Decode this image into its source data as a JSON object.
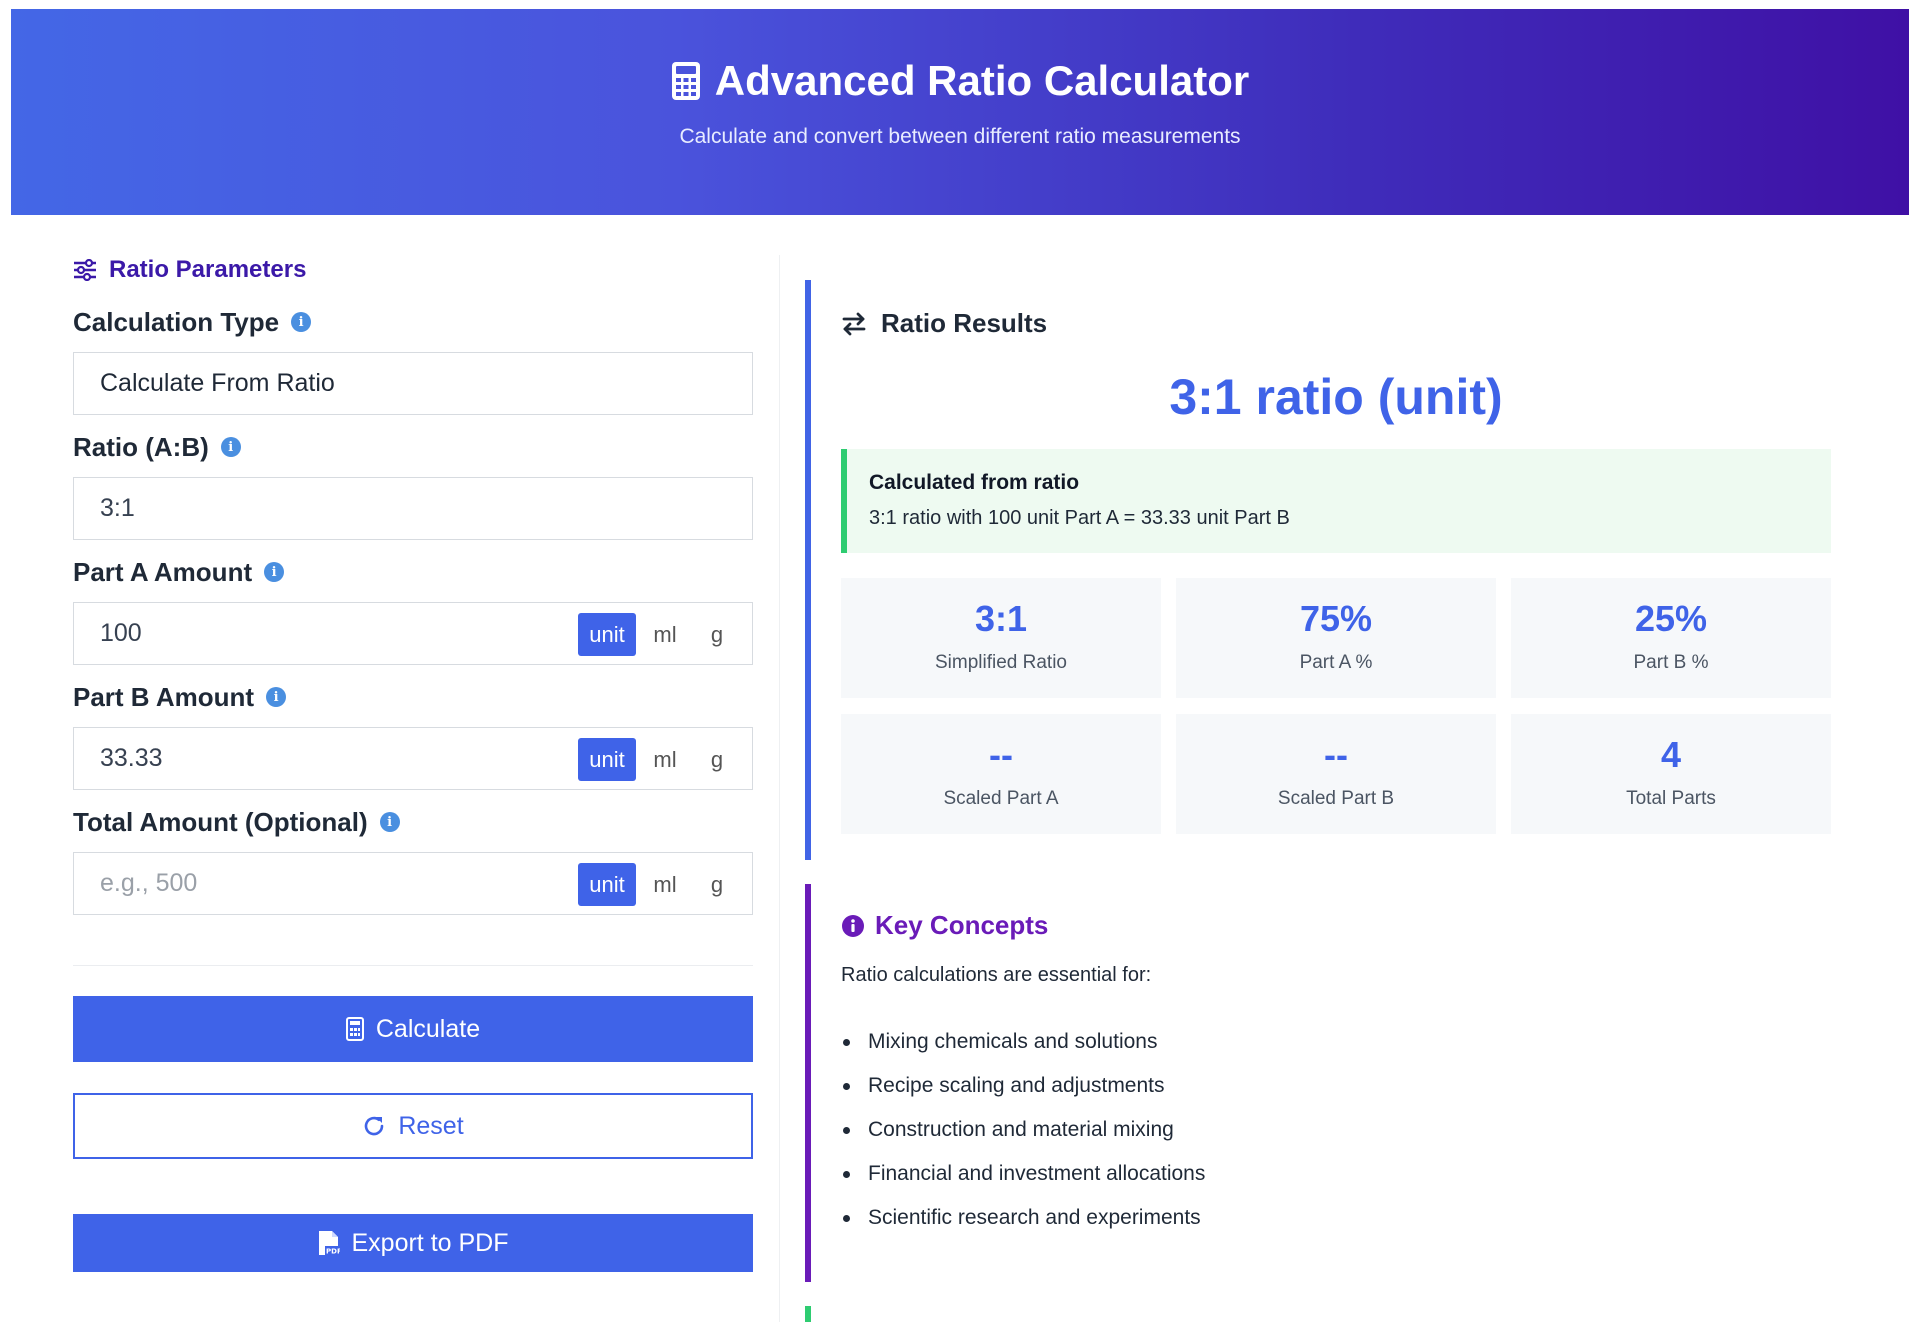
{
  "header": {
    "title": "Advanced Ratio Calculator",
    "subtitle": "Calculate and convert between different ratio measurements",
    "icon": "calculator-icon"
  },
  "params": {
    "section_title": "Ratio Parameters",
    "calc_type_label": "Calculation Type",
    "calc_type_value": "Calculate From Ratio",
    "ratio_label": "Ratio (A:B)",
    "ratio_value": "3:1",
    "part_a_label": "Part A Amount",
    "part_a_value": "100",
    "part_b_label": "Part B Amount",
    "part_b_value": "33.33",
    "total_label": "Total Amount (Optional)",
    "total_placeholder": "e.g., 500",
    "units": [
      "unit",
      "ml",
      "g"
    ],
    "selected_unit": "unit"
  },
  "buttons": {
    "calculate": "Calculate",
    "reset": "Reset",
    "export": "Export to PDF"
  },
  "results": {
    "title": "Ratio Results",
    "main": "3:1 ratio (unit)",
    "calc_title": "Calculated from ratio",
    "calc_detail": "3:1 ratio with 100 unit Part A = 33.33 unit Part B",
    "stats": [
      {
        "value": "3:1",
        "label": "Simplified Ratio"
      },
      {
        "value": "75%",
        "label": "Part A %"
      },
      {
        "value": "25%",
        "label": "Part B %"
      },
      {
        "value": "--",
        "label": "Scaled Part A"
      },
      {
        "value": "--",
        "label": "Scaled Part B"
      },
      {
        "value": "4",
        "label": "Total Parts"
      }
    ]
  },
  "concepts": {
    "title": "Key Concepts",
    "intro": "Ratio calculations are essential for:",
    "items": [
      "Mixing chemicals and solutions",
      "Recipe scaling and adjustments",
      "Construction and material mixing",
      "Financial and investment allocations",
      "Scientific research and experiments"
    ]
  },
  "colors": {
    "primary": "#3f63e8",
    "accent_purple": "#6a1bb8",
    "success": "#2ecc71"
  }
}
